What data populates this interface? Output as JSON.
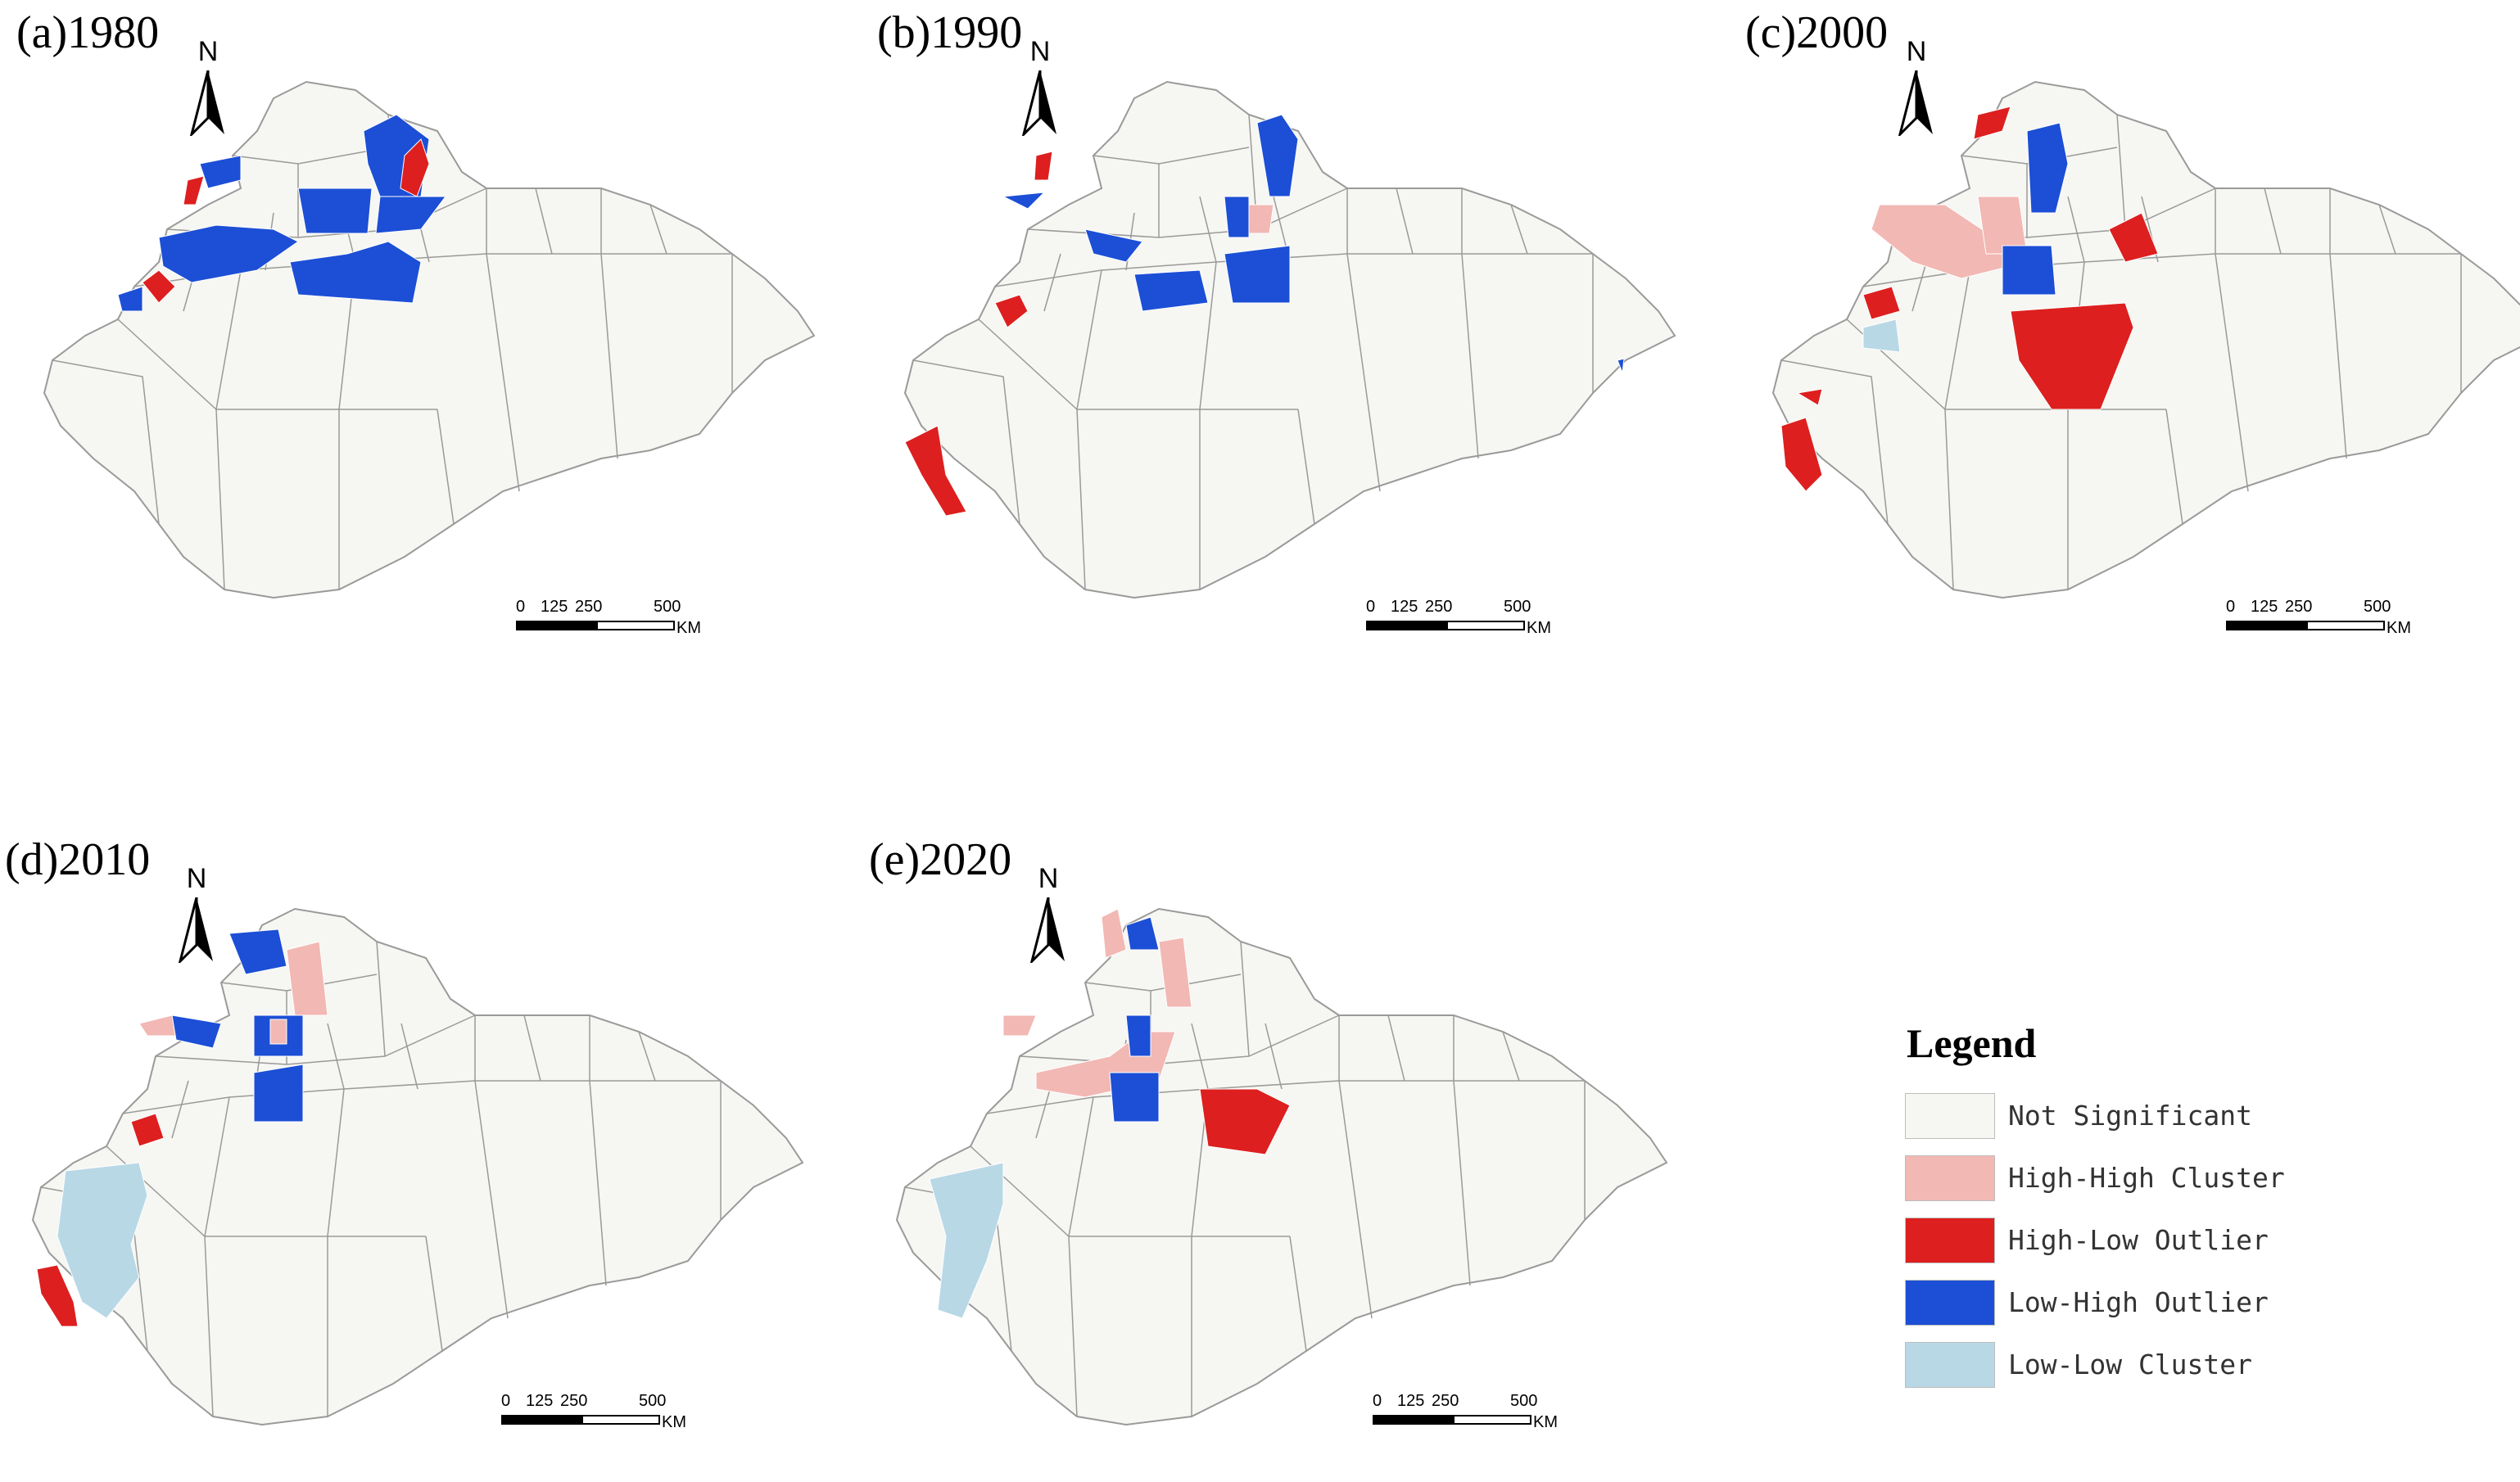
{
  "colors": {
    "not_significant": "#f6f6f2",
    "high_high": "#f2b8b4",
    "high_low": "#dd1f1f",
    "low_high": "#1c4fd6",
    "low_low": "#b8d8e6",
    "boundary": "#9a9a9a"
  },
  "north_letter": "N",
  "scale": {
    "ticks": [
      "0",
      "125",
      "250",
      "500"
    ],
    "unit": "KM"
  },
  "panels": [
    {
      "label": "(a)1980",
      "classes": {
        "not_significant": true,
        "high_high": false,
        "high_low": true,
        "low_high": true,
        "low_low": false
      }
    },
    {
      "label": "(b)1990",
      "classes": {
        "not_significant": true,
        "high_high": true,
        "high_low": true,
        "low_high": true,
        "low_low": false
      }
    },
    {
      "label": "(c)2000",
      "classes": {
        "not_significant": true,
        "high_high": true,
        "high_low": true,
        "low_high": true,
        "low_low": true
      }
    },
    {
      "label": "(d)2010",
      "classes": {
        "not_significant": true,
        "high_high": true,
        "high_low": true,
        "low_high": true,
        "low_low": true
      }
    },
    {
      "label": "(e)2020",
      "classes": {
        "not_significant": true,
        "high_high": true,
        "high_low": true,
        "low_high": true,
        "low_low": true
      }
    }
  ],
  "legend": {
    "title": "Legend",
    "items": [
      {
        "label": "Not Significant",
        "key": "not_significant"
      },
      {
        "label": "High-High Cluster",
        "key": "high_high"
      },
      {
        "label": "High-Low Outlier",
        "key": "high_low"
      },
      {
        "label": "Low-High Outlier",
        "key": "low_high"
      },
      {
        "label": "Low-Low Cluster",
        "key": "low_low"
      }
    ]
  }
}
